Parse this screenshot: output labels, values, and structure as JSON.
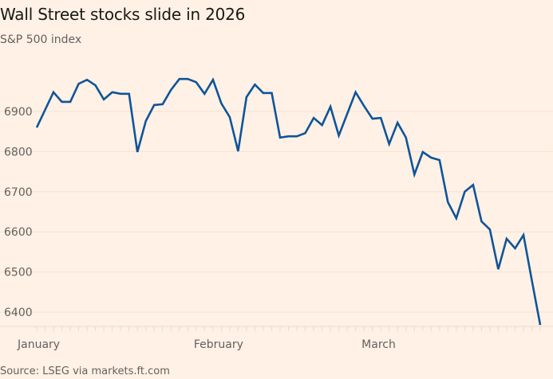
{
  "chart_data": {
    "type": "line",
    "title": "Wall Street stocks slide in 2026",
    "subtitle": "S&P 500 index",
    "source": "Source: LSEG via markets.ft.com",
    "xlabel": "",
    "ylabel": "",
    "ylim": [
      6365,
      6995
    ],
    "yticks": [
      6400,
      6500,
      6600,
      6700,
      6800,
      6900
    ],
    "xtick_labels": [
      {
        "label": "January",
        "index": 0
      },
      {
        "label": "February",
        "index": 21
      },
      {
        "label": "March",
        "index": 41
      }
    ],
    "grid": true,
    "legend": "none",
    "line_color": "#0F5499",
    "background": "#FFF1E5",
    "series": [
      {
        "name": "S&P 500",
        "values": [
          6860,
          6904,
          6948,
          6924,
          6924,
          6969,
          6979,
          6965,
          6930,
          6948,
          6944,
          6944,
          6799,
          6876,
          6916,
          6918,
          6954,
          6981,
          6981,
          6973,
          6944,
          6979,
          6920,
          6886,
          6801,
          6936,
          6967,
          6946,
          6946,
          6835,
          6838,
          6838,
          6846,
          6884,
          6866,
          6912,
          6840,
          6894,
          6948,
          6914,
          6882,
          6884,
          6819,
          6872,
          6835,
          6743,
          6799,
          6785,
          6779,
          6674,
          6634,
          6700,
          6717,
          6626,
          6606,
          6507,
          6583,
          6559,
          6592,
          6479,
          6368
        ]
      }
    ]
  }
}
